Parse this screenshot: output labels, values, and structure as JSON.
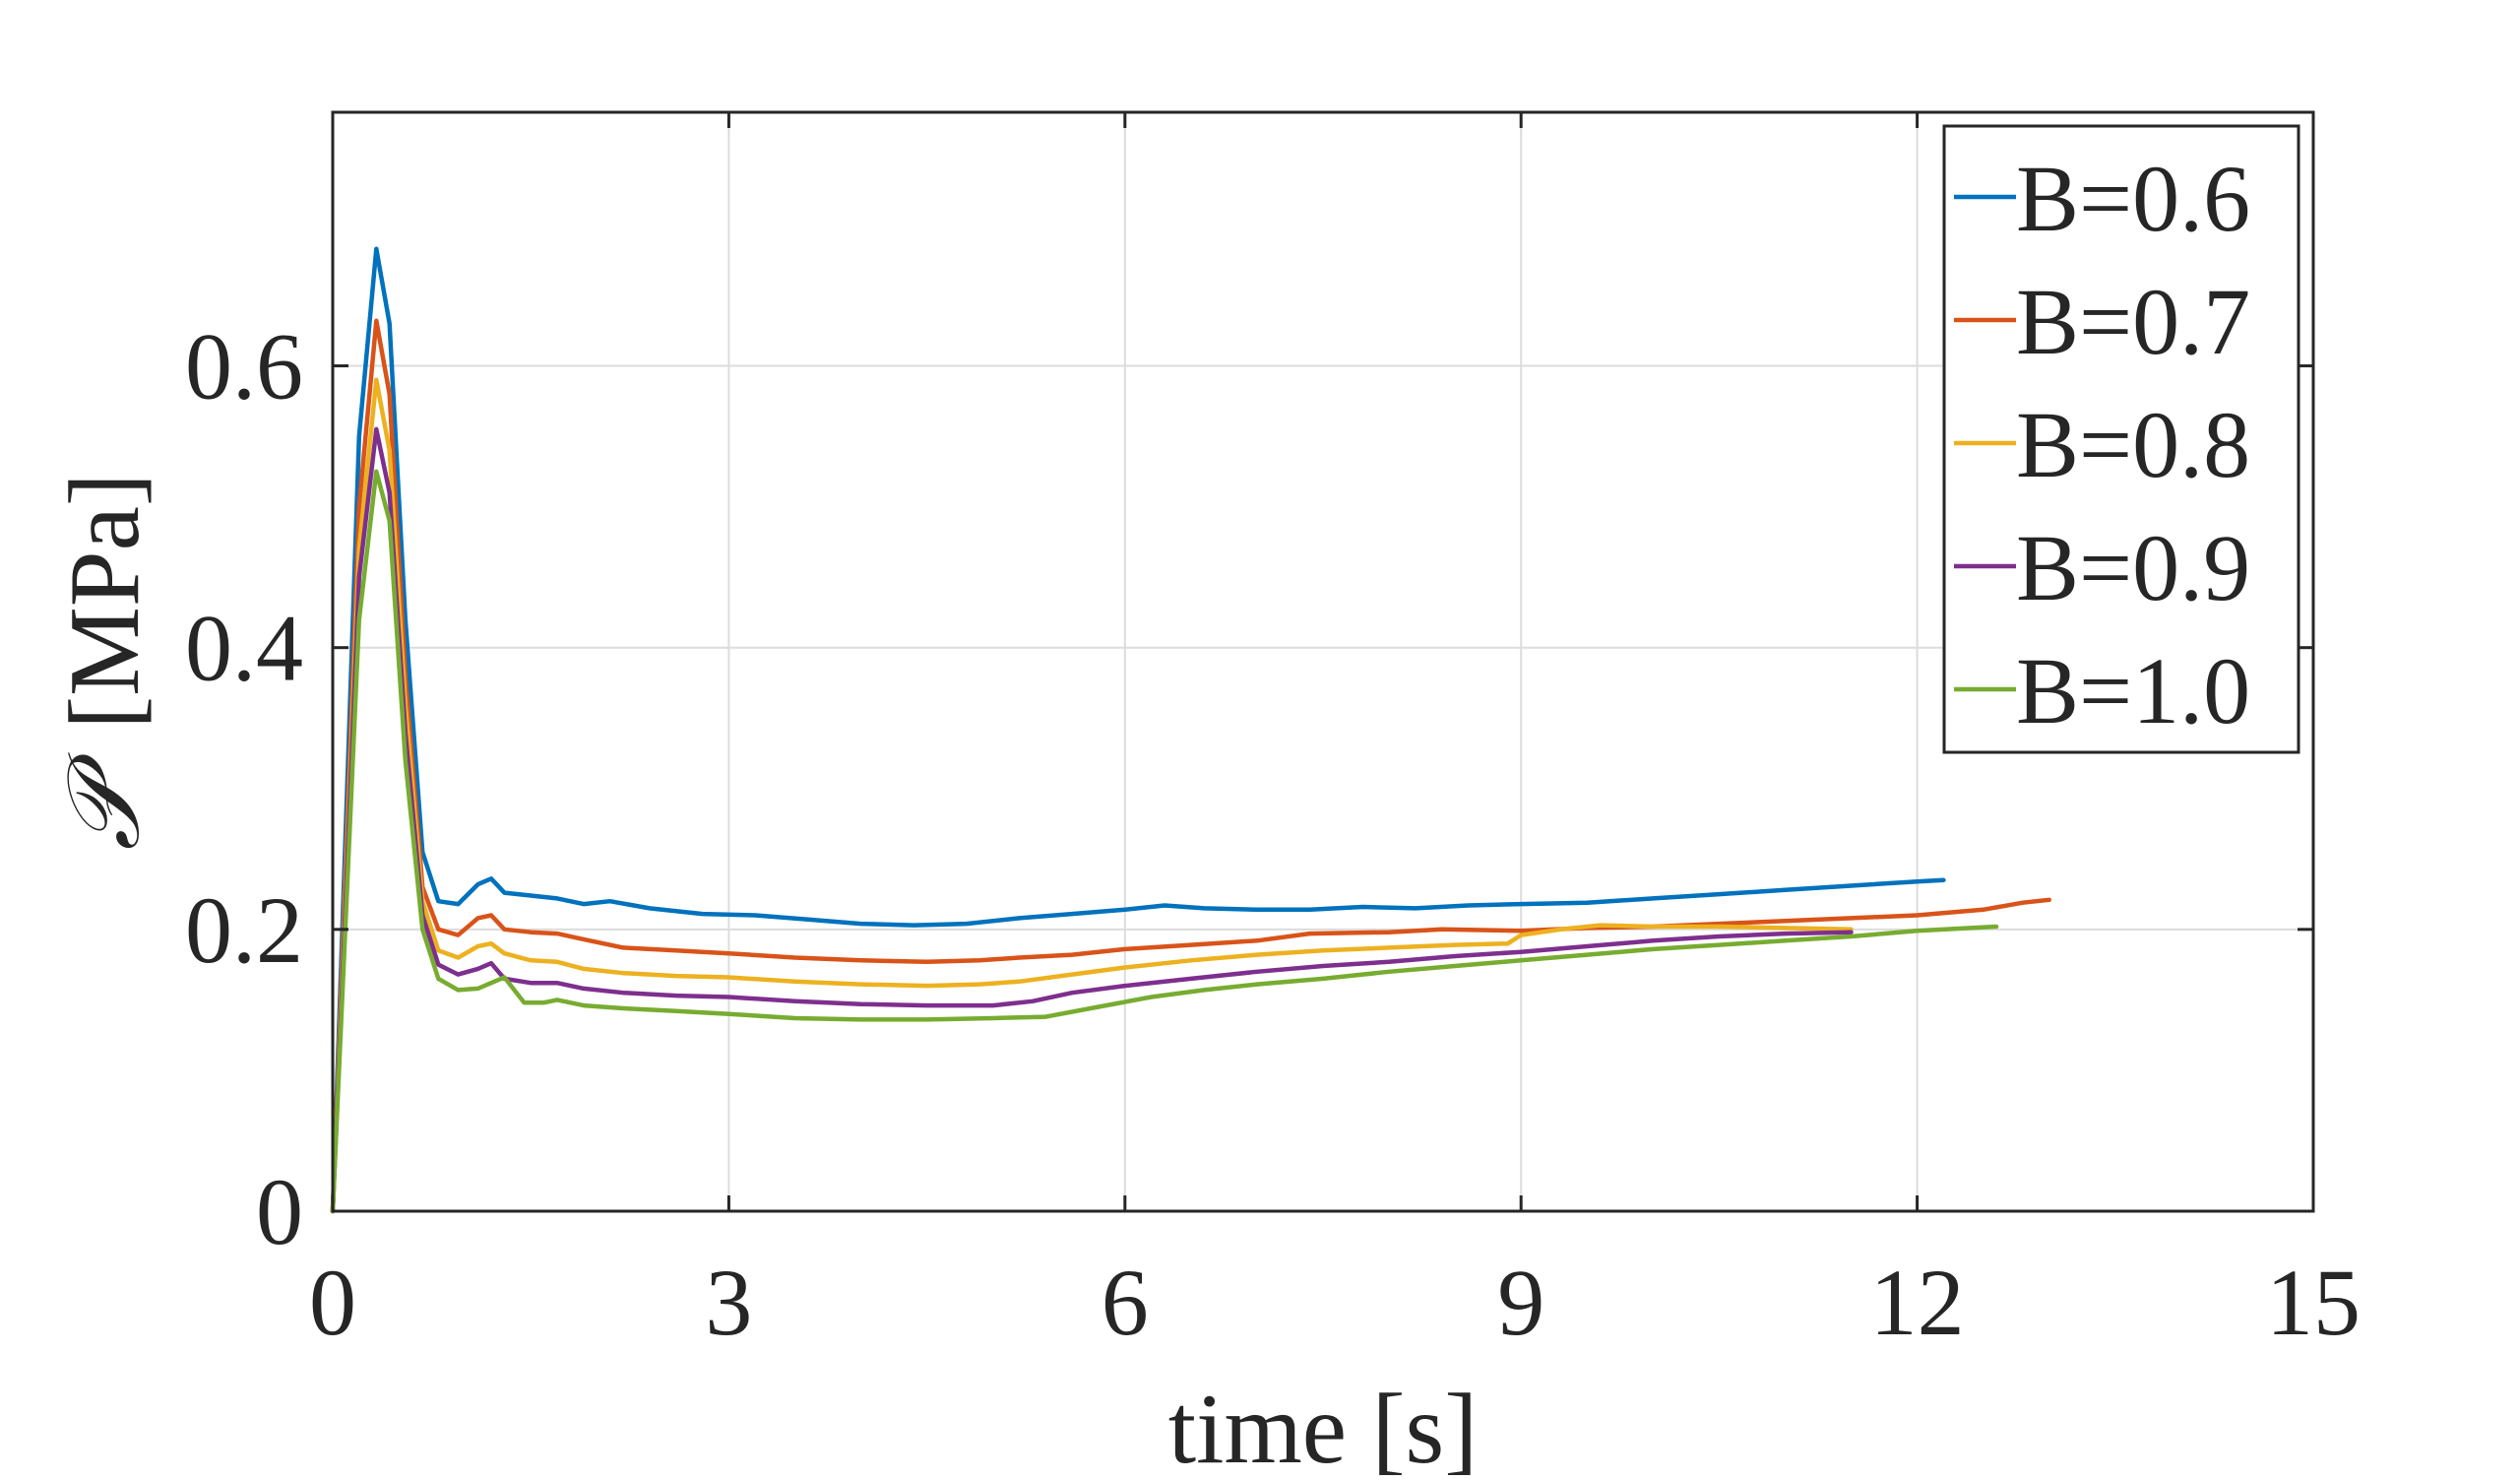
{
  "chart_data": {
    "type": "line",
    "title": "",
    "xlabel": "time [s]",
    "ylabel_symbol": "𝒫",
    "ylabel_unit": "[MPa]",
    "xlim": [
      0,
      15
    ],
    "ylim": [
      0,
      0.78
    ],
    "xticks": [
      0,
      3,
      6,
      9,
      12,
      15
    ],
    "xtick_labels": [
      "0",
      "3",
      "6",
      "9",
      "12",
      "15"
    ],
    "yticks": [
      0,
      0.2,
      0.4,
      0.6
    ],
    "ytick_labels": [
      "0",
      "0.2",
      "0.4",
      "0.6"
    ],
    "grid": true,
    "legend_position": "top-right",
    "series": [
      {
        "name": "B=0.6",
        "color": "#0072BD",
        "x": [
          0.0,
          0.2,
          0.33,
          0.43,
          0.55,
          0.68,
          0.8,
          0.95,
          1.1,
          1.2,
          1.3,
          1.5,
          1.7,
          1.9,
          2.1,
          2.4,
          2.8,
          3.2,
          3.6,
          4.0,
          4.4,
          4.8,
          5.2,
          5.6,
          6.0,
          6.3,
          6.6,
          7.0,
          7.4,
          7.8,
          8.2,
          8.6,
          9.0,
          9.5,
          10.0,
          10.5,
          11.0,
          11.5,
          12.0,
          12.2
        ],
        "y": [
          0.0,
          0.55,
          0.683,
          0.63,
          0.42,
          0.255,
          0.22,
          0.218,
          0.232,
          0.236,
          0.226,
          0.224,
          0.222,
          0.218,
          0.22,
          0.215,
          0.211,
          0.21,
          0.207,
          0.204,
          0.203,
          0.204,
          0.208,
          0.211,
          0.214,
          0.217,
          0.215,
          0.214,
          0.214,
          0.216,
          0.215,
          0.217,
          0.218,
          0.219,
          0.222,
          0.225,
          0.228,
          0.231,
          0.234,
          0.235
        ]
      },
      {
        "name": "B=0.7",
        "color": "#D95319",
        "x": [
          0.0,
          0.2,
          0.33,
          0.43,
          0.55,
          0.68,
          0.8,
          0.95,
          1.1,
          1.2,
          1.3,
          1.5,
          1.7,
          1.9,
          2.2,
          2.6,
          3.0,
          3.5,
          4.0,
          4.5,
          4.9,
          5.2,
          5.6,
          6.0,
          6.5,
          7.0,
          7.4,
          8.0,
          8.4,
          9.0,
          9.5,
          10.0,
          10.5,
          11.0,
          11.5,
          12.0,
          12.5,
          12.8,
          13.0
        ],
        "y": [
          0.0,
          0.5,
          0.632,
          0.58,
          0.38,
          0.23,
          0.2,
          0.196,
          0.208,
          0.21,
          0.2,
          0.198,
          0.197,
          0.193,
          0.187,
          0.185,
          0.183,
          0.18,
          0.178,
          0.177,
          0.178,
          0.18,
          0.182,
          0.186,
          0.189,
          0.192,
          0.197,
          0.198,
          0.2,
          0.199,
          0.201,
          0.202,
          0.204,
          0.206,
          0.208,
          0.21,
          0.214,
          0.219,
          0.221
        ]
      },
      {
        "name": "B=0.8",
        "color": "#EDB120",
        "x": [
          0.0,
          0.2,
          0.33,
          0.43,
          0.55,
          0.68,
          0.8,
          0.95,
          1.1,
          1.2,
          1.3,
          1.5,
          1.7,
          1.9,
          2.2,
          2.6,
          3.0,
          3.5,
          4.0,
          4.5,
          4.9,
          5.2,
          5.6,
          6.0,
          6.5,
          7.0,
          7.5,
          8.0,
          8.5,
          8.9,
          9.0,
          9.3,
          9.6,
          10.0,
          10.5,
          11.0,
          11.5
        ],
        "y": [
          0.0,
          0.47,
          0.59,
          0.54,
          0.36,
          0.22,
          0.185,
          0.18,
          0.188,
          0.19,
          0.183,
          0.178,
          0.177,
          0.172,
          0.169,
          0.167,
          0.166,
          0.163,
          0.161,
          0.16,
          0.161,
          0.163,
          0.168,
          0.173,
          0.178,
          0.182,
          0.185,
          0.187,
          0.189,
          0.19,
          0.196,
          0.2,
          0.203,
          0.202,
          0.202,
          0.201,
          0.2
        ]
      },
      {
        "name": "B=0.9",
        "color": "#7E2F8E",
        "x": [
          0.0,
          0.2,
          0.33,
          0.43,
          0.55,
          0.68,
          0.8,
          0.95,
          1.1,
          1.2,
          1.3,
          1.5,
          1.7,
          1.9,
          2.2,
          2.6,
          3.0,
          3.5,
          4.0,
          4.5,
          5.0,
          5.3,
          5.6,
          6.0,
          6.5,
          7.0,
          7.5,
          8.0,
          8.5,
          9.0,
          9.5,
          10.0,
          10.5,
          11.0,
          11.5
        ],
        "y": [
          0.0,
          0.45,
          0.555,
          0.51,
          0.34,
          0.21,
          0.175,
          0.168,
          0.172,
          0.176,
          0.165,
          0.162,
          0.162,
          0.158,
          0.155,
          0.153,
          0.152,
          0.149,
          0.147,
          0.146,
          0.146,
          0.149,
          0.155,
          0.16,
          0.165,
          0.17,
          0.174,
          0.177,
          0.181,
          0.184,
          0.188,
          0.192,
          0.195,
          0.197,
          0.198
        ]
      },
      {
        "name": "B=1.0",
        "color": "#77AC30",
        "x": [
          0.0,
          0.2,
          0.33,
          0.43,
          0.55,
          0.68,
          0.8,
          0.95,
          1.1,
          1.2,
          1.3,
          1.45,
          1.6,
          1.7,
          1.9,
          2.2,
          2.6,
          3.0,
          3.5,
          4.0,
          4.5,
          5.0,
          5.4,
          5.8,
          6.2,
          6.6,
          7.0,
          7.5,
          8.0,
          8.5,
          9.0,
          9.5,
          10.0,
          10.5,
          11.0,
          11.5,
          12.0,
          12.6
        ],
        "y": [
          0.0,
          0.42,
          0.525,
          0.49,
          0.32,
          0.2,
          0.165,
          0.157,
          0.158,
          0.162,
          0.166,
          0.148,
          0.148,
          0.15,
          0.146,
          0.144,
          0.142,
          0.14,
          0.137,
          0.136,
          0.136,
          0.137,
          0.138,
          0.145,
          0.152,
          0.157,
          0.161,
          0.165,
          0.17,
          0.174,
          0.178,
          0.182,
          0.186,
          0.189,
          0.192,
          0.195,
          0.199,
          0.202
        ]
      }
    ]
  }
}
